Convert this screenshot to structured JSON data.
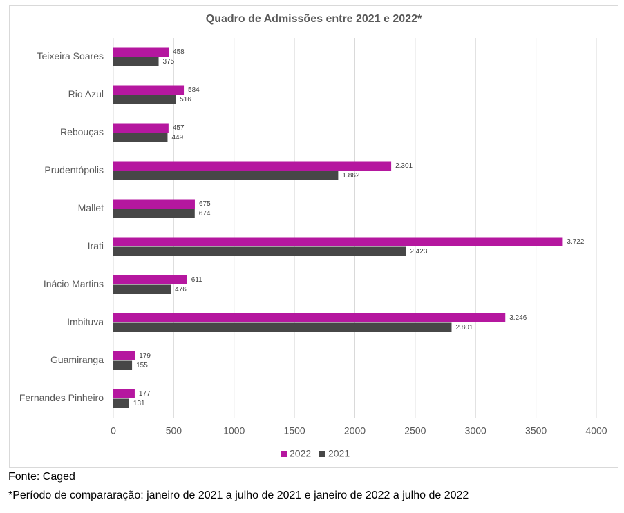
{
  "chart_data": {
    "type": "bar",
    "orientation": "horizontal",
    "title": "Quadro de Admissões entre 2021 e 2022*",
    "categories": [
      "Teixeira Soares",
      "Rio Azul",
      "Rebouças",
      "Prudentópolis",
      "Mallet",
      "Irati",
      "Inácio Martins",
      "Imbituva",
      "Guamiranga",
      "Fernandes Pinheiro"
    ],
    "series": [
      {
        "name": "2022",
        "color": "#b5179f",
        "values": [
          458,
          584,
          457,
          2301,
          675,
          3722,
          611,
          3246,
          179,
          177
        ],
        "value_labels": [
          "458",
          "584",
          "457",
          "2.301",
          "675",
          "3.722",
          "611",
          "3.246",
          "179",
          "177"
        ]
      },
      {
        "name": "2021",
        "color": "#474747",
        "values": [
          375,
          516,
          449,
          1862,
          674,
          2423,
          476,
          2801,
          155,
          131
        ],
        "value_labels": [
          "375",
          "516",
          "449",
          "1.862",
          "674",
          "2,423",
          "476",
          "2.801",
          "155",
          "131"
        ]
      }
    ],
    "xlim": [
      0,
      4000
    ],
    "xticks": [
      0,
      500,
      1000,
      1500,
      2000,
      2500,
      3000,
      3500,
      4000
    ],
    "grid": true,
    "legend": "bottom"
  },
  "footer": {
    "source": "Fonte: Caged",
    "note": "*Período de compararação: janeiro de 2021 a julho de 2021 e janeiro de 2022 a julho de 2022"
  }
}
